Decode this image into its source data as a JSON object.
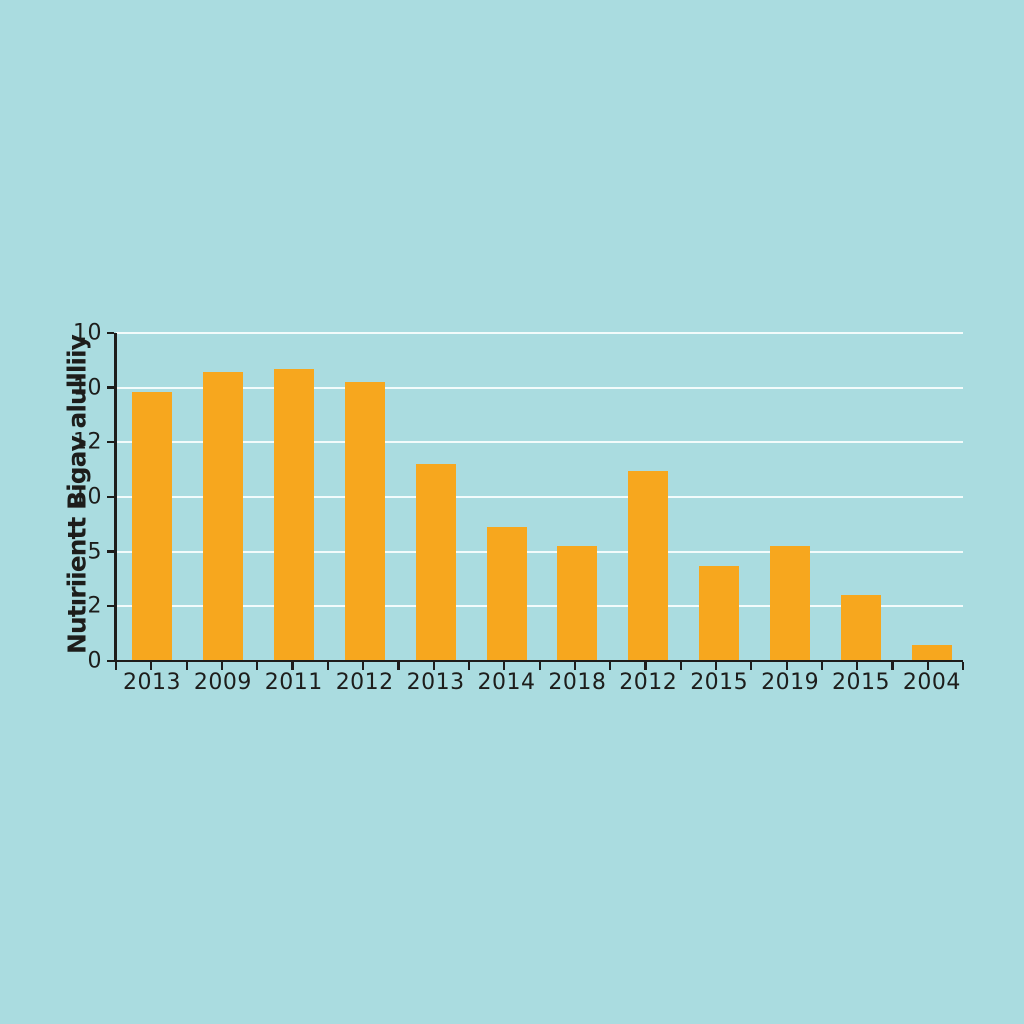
{
  "page": {
    "background_color": "#aadce0"
  },
  "chart_data": {
    "type": "bar",
    "title": "",
    "xlabel": "",
    "ylabel": "Nutıriientt Bigav alullliiy",
    "categories": [
      "2013",
      "2009",
      "2011",
      "2012",
      "2013",
      "2014",
      "2018",
      "2012",
      "2015",
      "2019",
      "2015",
      "2004"
    ],
    "values": [
      8.2,
      8.8,
      8.9,
      8.5,
      6.0,
      4.1,
      3.5,
      5.8,
      2.9,
      3.5,
      2.0,
      0.5
    ],
    "ylim": [
      0,
      10
    ],
    "ytick_labels_bottom_to_top": [
      "0",
      "2",
      "5",
      "10",
      "12",
      "10",
      "10"
    ],
    "grid": true,
    "legend": "none",
    "colors": {
      "bar": "#f7a71e",
      "background": "#aadce0",
      "gridline": "#f2fbfb",
      "axis": "#1d1d1b",
      "text": "#1d1d1b"
    }
  }
}
